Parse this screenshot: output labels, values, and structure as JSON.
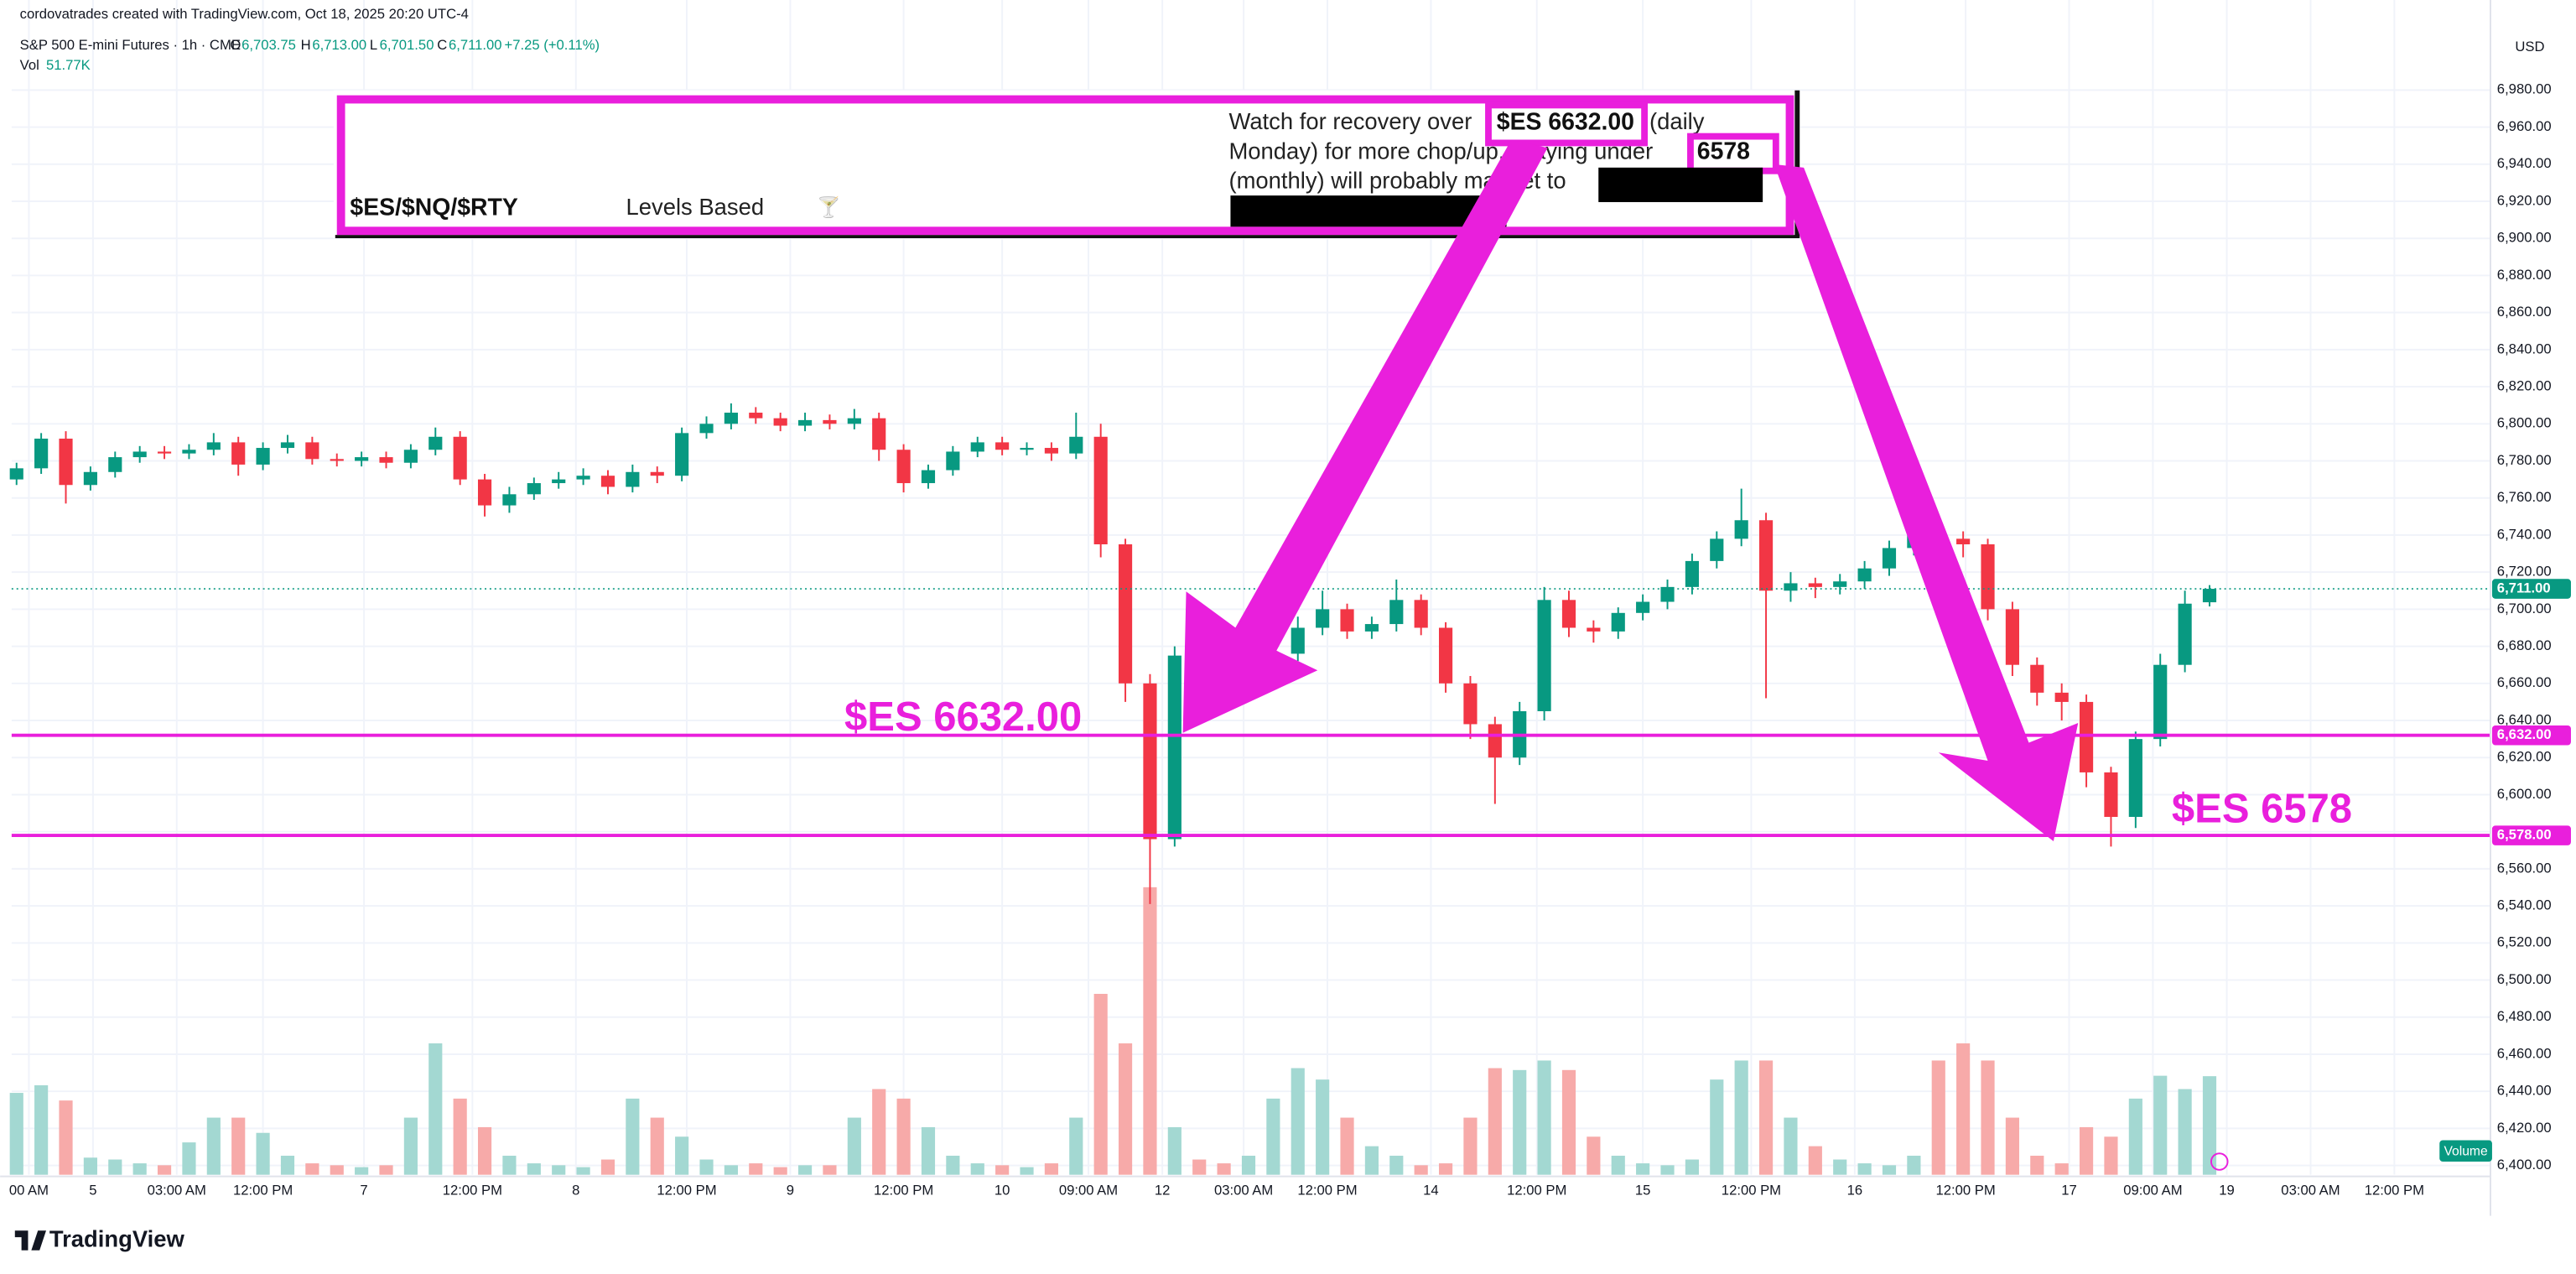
{
  "header": {
    "author_line": "cordovatrades created with TradingView.com, Oct 18, 2025 20:20 UTC-4",
    "symbol": "S&P 500 E-mini Futures · 1h · CME",
    "o_label": "O",
    "open": "6,703.75",
    "h_label": "H",
    "high": "6,713.00",
    "l_label": "L",
    "low": "6,701.50",
    "c_label": "C",
    "close": "6,711.00",
    "change": "+7.25 (+0.11%)",
    "vol_label": "Vol",
    "vol": "51.77K"
  },
  "chart_data": {
    "type": "candlestick",
    "open": [
      6770,
      6776,
      6792,
      6767,
      6774,
      6782,
      6785,
      6784,
      6786,
      6790,
      6778,
      6787,
      6790,
      6781,
      6780,
      6782,
      6779,
      6786,
      6793,
      6770,
      6756,
      6762,
      6768,
      6770,
      6772,
      6766,
      6774,
      6772,
      6795,
      6800,
      6806,
      6803,
      6799,
      6802,
      6800,
      6803,
      6786,
      6768,
      6775,
      6785,
      6790,
      6786,
      6787,
      6784,
      6793,
      6735,
      6660,
      6576,
      6675,
      6668,
      6666,
      6670,
      6676,
      6690,
      6700,
      6688,
      6692,
      6705,
      6690,
      6660,
      6638,
      6620,
      6645,
      6705,
      6690,
      6688,
      6698,
      6704,
      6712,
      6726,
      6738,
      6748,
      6710,
      6714,
      6712,
      6715,
      6722,
      6733,
      6740,
      6738,
      6735,
      6700,
      6670,
      6655,
      6650,
      6612,
      6588,
      6630,
      6670,
      6703.75
    ],
    "high": [
      6779,
      6795,
      6796,
      6777,
      6785,
      6788,
      6788,
      6789,
      6795,
      6793,
      6790,
      6794,
      6793,
      6784,
      6785,
      6785,
      6789,
      6798,
      6796,
      6773,
      6766,
      6771,
      6774,
      6776,
      6775,
      6778,
      6777,
      6798,
      6804,
      6811,
      6809,
      6806,
      6806,
      6805,
      6808,
      6806,
      6789,
      6778,
      6788,
      6793,
      6793,
      6790,
      6790,
      6806,
      6800,
      6738,
      6665,
      6680,
      6678,
      6671,
      6674,
      6680,
      6696,
      6710,
      6703,
      6696,
      6716,
      6708,
      6693,
      6664,
      6642,
      6650,
      6712,
      6710,
      6694,
      6701,
      6708,
      6716,
      6730,
      6742,
      6765,
      6752,
      6720,
      6717,
      6719,
      6726,
      6737,
      6744,
      6745,
      6742,
      6738,
      6704,
      6674,
      6660,
      6654,
      6615,
      6634,
      6676,
      6710,
      6713
    ],
    "low": [
      6767,
      6773,
      6757,
      6764,
      6771,
      6779,
      6781,
      6781,
      6783,
      6772,
      6775,
      6784,
      6778,
      6777,
      6777,
      6776,
      6776,
      6783,
      6767,
      6750,
      6752,
      6759,
      6765,
      6767,
      6762,
      6763,
      6768,
      6769,
      6792,
      6797,
      6800,
      6796,
      6796,
      6797,
      6797,
      6780,
      6763,
      6765,
      6772,
      6782,
      6783,
      6783,
      6780,
      6781,
      6728,
      6650,
      6541,
      6572,
      6662,
      6660,
      6662,
      6665,
      6672,
      6686,
      6684,
      6684,
      6688,
      6686,
      6655,
      6630,
      6595,
      6616,
      6640,
      6685,
      6682,
      6684,
      6694,
      6700,
      6708,
      6722,
      6734,
      6652,
      6704,
      6706,
      6708,
      6711,
      6718,
      6729,
      6733,
      6728,
      6694,
      6664,
      6648,
      6640,
      6604,
      6572,
      6582,
      6626,
      6666,
      6701.5
    ],
    "close": [
      6776,
      6792,
      6767,
      6774,
      6782,
      6785,
      6784,
      6786,
      6790,
      6778,
      6787,
      6790,
      6781,
      6780,
      6782,
      6779,
      6786,
      6793,
      6770,
      6756,
      6762,
      6768,
      6770,
      6772,
      6766,
      6774,
      6772,
      6795,
      6800,
      6806,
      6803,
      6799,
      6802,
      6800,
      6803,
      6786,
      6768,
      6775,
      6785,
      6790,
      6786,
      6787,
      6784,
      6793,
      6735,
      6660,
      6576,
      6675,
      6668,
      6666,
      6670,
      6676,
      6690,
      6700,
      6688,
      6692,
      6705,
      6690,
      6660,
      6638,
      6620,
      6645,
      6705,
      6690,
      6688,
      6698,
      6704,
      6712,
      6726,
      6738,
      6748,
      6710,
      6714,
      6712,
      6715,
      6722,
      6733,
      6740,
      6738,
      6735,
      6700,
      6670,
      6655,
      6650,
      6612,
      6588,
      6630,
      6670,
      6703,
      6711
    ],
    "volume": [
      43,
      47,
      39,
      9,
      8,
      6,
      5,
      17,
      30,
      30,
      22,
      10,
      6,
      5,
      4,
      5,
      30,
      69,
      40,
      25,
      10,
      6,
      5,
      4,
      8,
      40,
      30,
      20,
      8,
      5,
      6,
      4,
      5,
      5,
      30,
      45,
      40,
      25,
      10,
      6,
      5,
      4,
      6,
      30,
      95,
      69,
      151,
      25,
      8,
      6,
      10,
      40,
      56,
      50,
      30,
      15,
      10,
      5,
      6,
      30,
      56,
      55,
      60,
      55,
      20,
      10,
      6,
      5,
      8,
      50,
      60,
      60,
      30,
      15,
      8,
      6,
      5,
      10,
      60,
      69,
      60,
      30,
      10,
      6,
      25,
      20,
      40,
      52,
      45,
      51.77
    ],
    "up_color": "#089981",
    "down_color": "#f23645",
    "volume_up_color": "#a3d8d2",
    "volume_down_color": "#f7aaa9",
    "ylim": [
      6395,
      7015
    ],
    "yticks": [
      {
        "value": 6400,
        "label": "6,400.00"
      },
      {
        "value": 6420,
        "label": "6,420.00"
      },
      {
        "value": 6440,
        "label": "6,440.00"
      },
      {
        "value": 6460,
        "label": "6,460.00"
      },
      {
        "value": 6480,
        "label": "6,480.00"
      },
      {
        "value": 6500,
        "label": "6,500.00"
      },
      {
        "value": 6520,
        "label": "6,520.00"
      },
      {
        "value": 6540,
        "label": "6,540.00"
      },
      {
        "value": 6560,
        "label": "6,560.00"
      },
      {
        "value": 6580,
        "label": "6,580.00"
      },
      {
        "value": 6600,
        "label": "6,600.00"
      },
      {
        "value": 6620,
        "label": "6,620.00"
      },
      {
        "value": 6640,
        "label": "6,640.00"
      },
      {
        "value": 6660,
        "label": "6,660.00"
      },
      {
        "value": 6680,
        "label": "6,680.00"
      },
      {
        "value": 6700,
        "label": "6,700.00"
      },
      {
        "value": 6720,
        "label": "6,720.00"
      },
      {
        "value": 6740,
        "label": "6,740.00"
      },
      {
        "value": 6760,
        "label": "6,760.00"
      },
      {
        "value": 6780,
        "label": "6,780.00"
      },
      {
        "value": 6800,
        "label": "6,800.00"
      },
      {
        "value": 6820,
        "label": "6,820.00"
      },
      {
        "value": 6840,
        "label": "6,840.00"
      },
      {
        "value": 6860,
        "label": "6,860.00"
      },
      {
        "value": 6880,
        "label": "6,880.00"
      },
      {
        "value": 6900,
        "label": "6,900.00"
      },
      {
        "value": 6920,
        "label": "6,920.00"
      },
      {
        "value": 6940,
        "label": "6,940.00"
      },
      {
        "value": 6960,
        "label": "6,960.00"
      },
      {
        "value": 6980,
        "label": "6,980.00"
      }
    ],
    "xlim": [
      -0.2,
      100.4
    ],
    "xticks": [
      {
        "value": 0.5,
        "label": "00 AM"
      },
      {
        "value": 3.1,
        "label": "5"
      },
      {
        "value": 6.5,
        "label": "03:00 AM"
      },
      {
        "value": 10,
        "label": "12:00 PM"
      },
      {
        "value": 14.1,
        "label": "7"
      },
      {
        "value": 18.5,
        "label": "12:00 PM"
      },
      {
        "value": 22.7,
        "label": "8"
      },
      {
        "value": 27.2,
        "label": "12:00 PM"
      },
      {
        "value": 31.4,
        "label": "9"
      },
      {
        "value": 36,
        "label": "12:00 PM"
      },
      {
        "value": 40,
        "label": "10"
      },
      {
        "value": 43.5,
        "label": "09:00 AM"
      },
      {
        "value": 46.5,
        "label": "12"
      },
      {
        "value": 49.8,
        "label": "03:00 AM"
      },
      {
        "value": 53.2,
        "label": "12:00 PM"
      },
      {
        "value": 57.4,
        "label": "14"
      },
      {
        "value": 61.7,
        "label": "12:00 PM"
      },
      {
        "value": 66,
        "label": "15"
      },
      {
        "value": 70.4,
        "label": "12:00 PM"
      },
      {
        "value": 74.6,
        "label": "16"
      },
      {
        "value": 79.1,
        "label": "12:00 PM"
      },
      {
        "value": 83.3,
        "label": "17"
      },
      {
        "value": 86.7,
        "label": "09:00 AM"
      },
      {
        "value": 89.7,
        "label": "19"
      },
      {
        "value": 93.1,
        "label": "03:00 AM"
      },
      {
        "value": 96.5,
        "label": "12:00 PM"
      }
    ],
    "grid": true,
    "currency": "USD",
    "volume_badge": "Volume",
    "last_price": {
      "value": 6711,
      "label": "6,711.00",
      "color": "#089981"
    },
    "hlines": [
      {
        "value": 6632,
        "label": "6,632.00",
        "color": "#e91fdc"
      },
      {
        "value": 6578,
        "label": "6,578.00",
        "color": "#e91fdc"
      }
    ],
    "annotations": [
      {
        "text": "$ES 6632.00"
      },
      {
        "text": "$ES 6578"
      }
    ]
  },
  "overlay": {
    "tickers": "$ES/$NQ/$RTY",
    "basis": "Levels Based",
    "line1": "Watch for recovery over",
    "level1": "$ES 6632.00",
    "line1b": "(daily",
    "line2": "Monday) for more chop/up. Staying under",
    "level2": "6578",
    "line3": "(monthly) will probably magnet to"
  },
  "footer": {
    "brand": "TradingView"
  }
}
